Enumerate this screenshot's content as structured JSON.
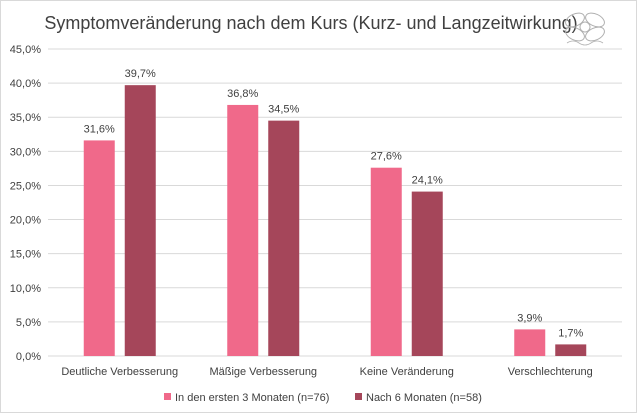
{
  "chart_data": {
    "type": "bar",
    "title": "Symptomveränderung nach dem Kurs (Kurz- und Langzeitwirkung)",
    "xlabel": "",
    "ylabel": "",
    "categories": [
      "Deutliche Verbesserung",
      "Mäßige Verbesserung",
      "Keine Veränderung",
      "Verschlechterung"
    ],
    "series": [
      {
        "name": "In den ersten 3 Monaten (n=76)",
        "values": [
          31.6,
          36.8,
          27.6,
          3.9
        ],
        "color": "#f0698a"
      },
      {
        "name": "Nach 6 Monaten (n=58)",
        "values": [
          39.7,
          34.5,
          24.1,
          1.7
        ],
        "color": "#a5465a"
      }
    ],
    "ylim": [
      0,
      45
    ],
    "yticks": [
      0,
      5,
      10,
      15,
      20,
      25,
      30,
      35,
      40,
      45
    ],
    "ytick_labels": [
      "0,0%",
      "5,0%",
      "10,0%",
      "15,0%",
      "20,0%",
      "25,0%",
      "30,0%",
      "35,0%",
      "40,0%",
      "45,0%"
    ],
    "data_labels": [
      [
        "31,6%",
        "36,8%",
        "27,6%",
        "3,9%"
      ],
      [
        "39,7%",
        "34,5%",
        "24,1%",
        "1,7%"
      ]
    ],
    "grid": true,
    "legend_position": "bottom",
    "gridline_color": "#d9d9d9",
    "axis_text_color": "#404040",
    "logo_icon": "knot-logo-icon"
  }
}
